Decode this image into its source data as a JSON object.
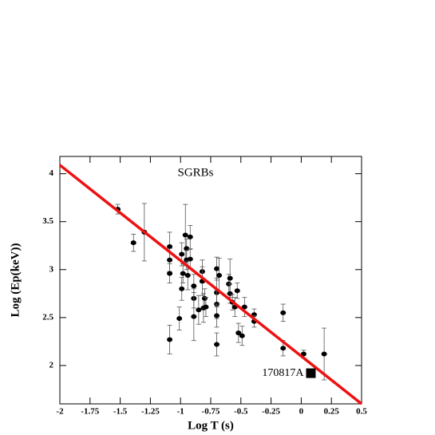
{
  "chart_data": {
    "type": "scatter",
    "title": "SGRBs",
    "x_label": "Log T (s)",
    "y_label": "Log (Ep(keV))",
    "xlim": [
      -2,
      0.5
    ],
    "ylim": [
      1.6,
      4.18
    ],
    "xticks": [
      -2,
      -1.75,
      -1.5,
      -1.25,
      -1,
      -0.75,
      -0.5,
      -0.25,
      0,
      0.25,
      0.5
    ],
    "yticks": [
      2,
      2.5,
      3,
      3.5,
      4
    ],
    "color": "#000000",
    "x": [
      -1.52,
      -1.39,
      -1.3,
      -1.09,
      -1.09,
      -1.09,
      -1.09,
      -1.01,
      -0.99,
      -0.99,
      -0.98,
      -0.96,
      -0.95,
      -0.95,
      -0.92,
      -0.92,
      -0.94,
      -0.89,
      -0.89,
      -0.89,
      -0.85,
      -0.82,
      -0.82,
      -0.81,
      -0.8,
      -0.79,
      -0.7,
      -0.68,
      -0.7,
      -0.7,
      -0.7,
      -0.7,
      -0.6,
      -0.59,
      -0.59,
      -0.57,
      -0.55,
      -0.53,
      -0.52,
      -0.49,
      -0.47,
      -0.39,
      -0.39,
      -0.15,
      -0.15,
      0.02,
      0.19
    ],
    "values": [
      3.63,
      3.28,
      3.39,
      3.24,
      3.1,
      2.96,
      2.27,
      2.49,
      3.16,
      2.8,
      2.96,
      3.36,
      3.22,
      3.1,
      3.34,
      3.11,
      2.94,
      2.83,
      2.7,
      2.51,
      2.58,
      2.98,
      2.88,
      2.6,
      2.7,
      2.61,
      3.01,
      2.94,
      2.76,
      2.64,
      2.52,
      2.22,
      2.85,
      2.91,
      2.75,
      2.66,
      2.61,
      2.78,
      2.34,
      2.31,
      2.61,
      2.53,
      2.46,
      2.55,
      2.18,
      2.12,
      2.12
    ],
    "errors": [
      0.05,
      0.09,
      0.3,
      0.15,
      0.12,
      0.1,
      0.15,
      0.12,
      0.12,
      0.12,
      0.1,
      0.32,
      0.1,
      0.1,
      0.12,
      0.1,
      0.15,
      0.12,
      0.1,
      0.25,
      0.15,
      0.12,
      0.15,
      0.15,
      0.1,
      0.1,
      0.12,
      0.18,
      0.15,
      0.15,
      0.12,
      0.12,
      0.1,
      0.2,
      0.1,
      0.08,
      0.1,
      0.08,
      0.1,
      0.1,
      0.1,
      0.06,
      0.06,
      0.09,
      0.08,
      0.04,
      0.27
    ],
    "highlight": {
      "label": "170817A",
      "x": 0.08,
      "y": 1.92
    },
    "fit": {
      "color": "#ee1111",
      "x": [
        -2,
        0.5
      ],
      "y": [
        4.09,
        1.6
      ]
    }
  }
}
